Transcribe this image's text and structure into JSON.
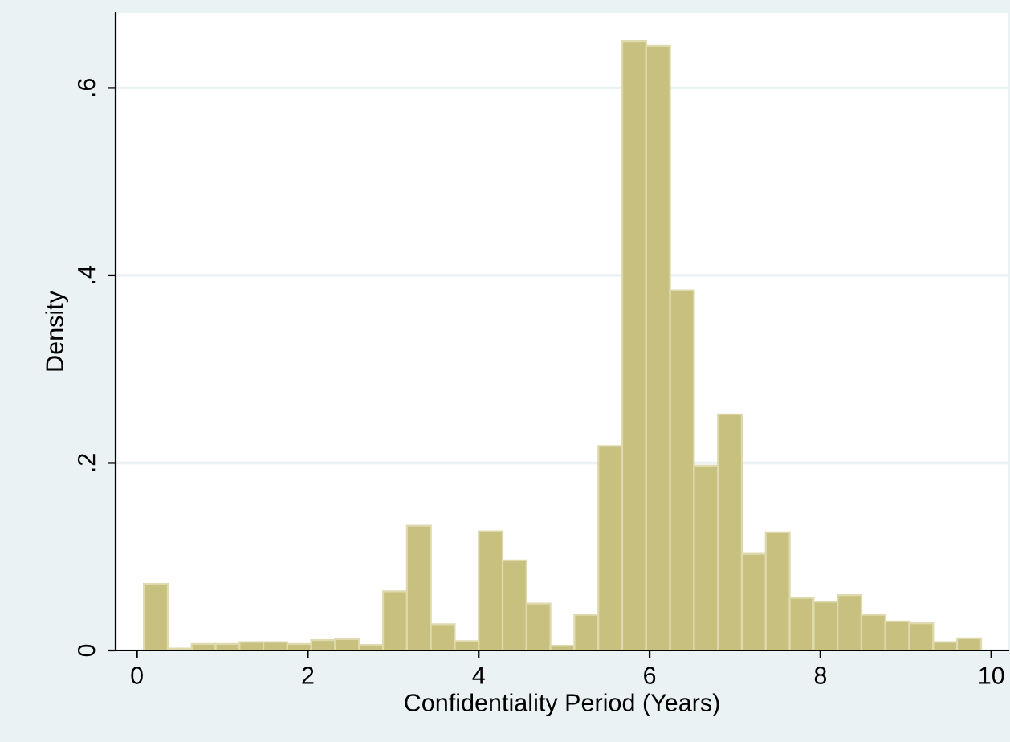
{
  "chart_data": {
    "type": "histogram",
    "xlabel": "Confidentiality Period (Years)",
    "ylabel": "Density",
    "bins": [
      0.08,
      0.36,
      0.64,
      0.92,
      1.2,
      1.48,
      1.76,
      2.04,
      2.32,
      2.6,
      2.88,
      3.16,
      3.44,
      3.72,
      4.0,
      4.28,
      4.56,
      4.84,
      5.12,
      5.4,
      5.68,
      5.96,
      6.24,
      6.52,
      6.8,
      7.08,
      7.36,
      7.64,
      7.92,
      8.2,
      8.48,
      8.76,
      9.04,
      9.32,
      9.6,
      9.88
    ],
    "values": [
      0.071,
      0.002,
      0.007,
      0.007,
      0.009,
      0.009,
      0.007,
      0.011,
      0.012,
      0.006,
      0.063,
      0.133,
      0.028,
      0.01,
      0.127,
      0.096,
      0.05,
      0.005,
      0.038,
      0.218,
      0.65,
      0.645,
      0.384,
      0.197,
      0.252,
      0.103,
      0.126,
      0.056,
      0.052,
      0.059,
      0.038,
      0.031,
      0.029,
      0.009,
      0.013
    ],
    "color": "#c8c07e",
    "xlim": [
      -0.25,
      10.2
    ],
    "xticks": [
      0,
      2,
      4,
      6,
      8,
      10
    ],
    "ylim": [
      0,
      0.68
    ],
    "yticks": [
      0,
      {
        "value": 0.2,
        "label": ".2"
      },
      {
        "value": 0.4,
        "label": ".4"
      },
      {
        "value": 0.6,
        "label": ".6"
      }
    ],
    "grid": "y"
  }
}
